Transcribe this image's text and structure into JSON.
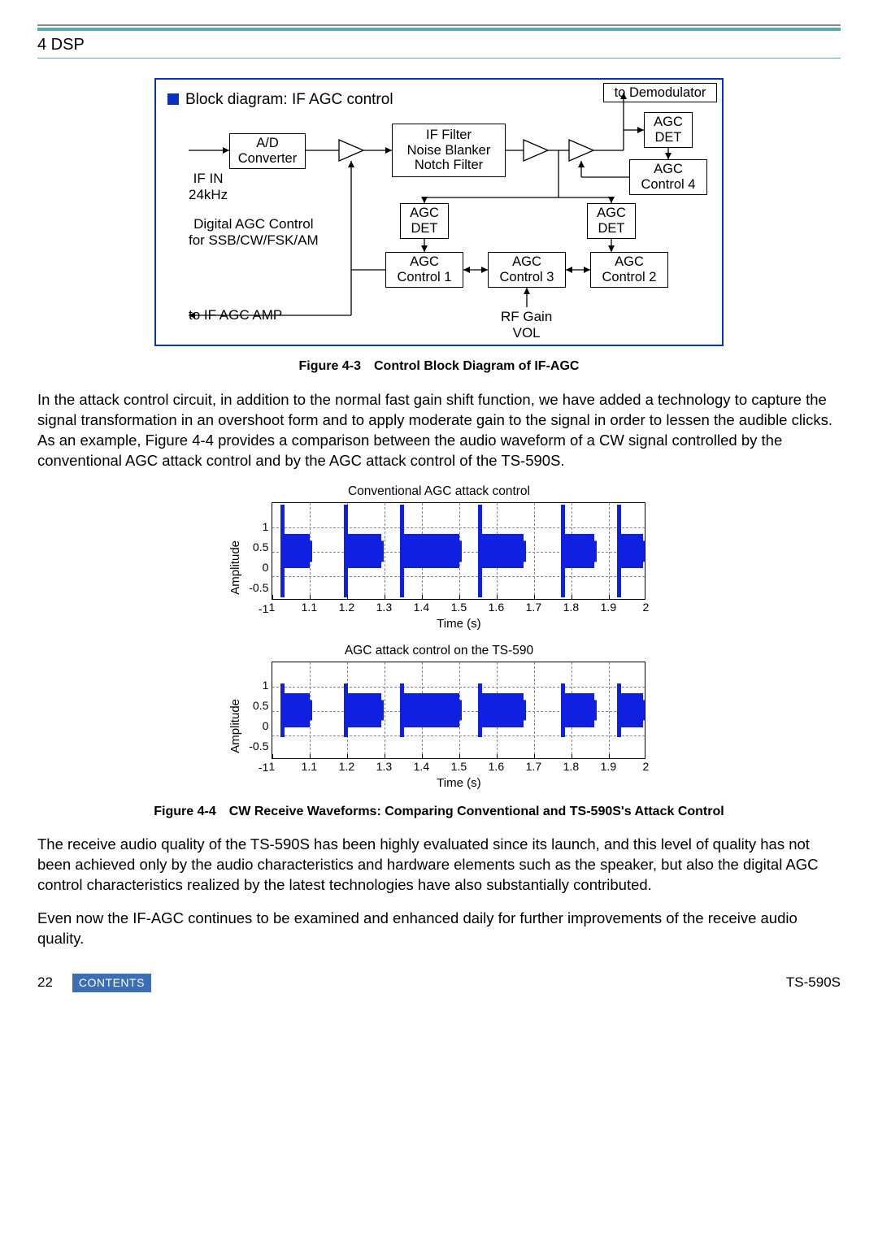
{
  "header": {
    "section": "4 DSP"
  },
  "colors": {
    "accent": "#5aa7b5",
    "diagram_border": "#0b2fbf",
    "contents_bg": "#3b6fb5",
    "burst_color": "#1020e0",
    "grid_color": "#888888"
  },
  "diagram": {
    "title_prefix_square": true,
    "title": "Block diagram: IF AGC control",
    "boxes": {
      "ad_converter": "A/D\nConverter",
      "if_filter": "IF Filter\nNoise Blanker\nNotch Filter",
      "agc_det_top": "AGC\nDET",
      "agc_ctrl4": "AGC\nControl 4",
      "agc_det_mid_l": "AGC\nDET",
      "agc_det_mid_r": "AGC\nDET",
      "agc_ctrl1": "AGC\nControl 1",
      "agc_ctrl3": "AGC\nControl 3",
      "agc_ctrl2": "AGC\nControl 2"
    },
    "labels": {
      "to_demod": "to Demodulator",
      "if_in": "IF IN\n24kHz",
      "digital_agc": "Digital AGC Control\nfor SSB/CW/FSK/AM",
      "to_if_agc_amp": "to IF AGC AMP",
      "rf_gain": "RF Gain\nVOL"
    }
  },
  "captions": {
    "fig43": "Figure 4-3 Control Block Diagram of IF-AGC",
    "fig44": "Figure 4-4 CW Receive Waveforms: Comparing Conventional and TS-590S's Attack Control"
  },
  "paragraphs": {
    "p1": "In the attack control circuit, in addition to the normal fast gain shift function, we have added a technology to capture the signal transformation in an overshoot form and to apply moderate gain to the signal in order to lessen the audible clicks.  As an example, Figure 4-4 provides a comparison between the audio waveform of a CW signal controlled by the conventional AGC attack control and by the AGC attack control of the TS-590S.",
    "p2": "The receive audio quality of the TS-590S has been highly evaluated since its launch, and this level of quality has not been achieved only by the audio characteristics and hardware elements such as the speaker, but also the digital AGC control characteristics realized by the latest technologies have also substantially contributed.",
    "p3": "Even now the IF-AGC continues to be examined and enhanced daily for further improvements of the receive audio quality."
  },
  "charts": {
    "x_axis": {
      "label": "Time (s)",
      "lim": [
        1,
        2
      ],
      "ticks": [
        1,
        1.1,
        1.2,
        1.3,
        1.4,
        1.5,
        1.6,
        1.7,
        1.8,
        1.9,
        2
      ]
    },
    "y_axis": {
      "label": "Amplitude",
      "lim": [
        -1,
        1
      ],
      "ticks": [
        1,
        0.5,
        0,
        -0.5,
        -1
      ]
    },
    "top": {
      "title": "Conventional AGC attack control",
      "bursts": [
        {
          "start_s": 1.02,
          "end_s": 1.1,
          "peak": 0.95,
          "body": 0.35
        },
        {
          "start_s": 1.19,
          "end_s": 1.29,
          "peak": 0.95,
          "body": 0.35
        },
        {
          "start_s": 1.34,
          "end_s": 1.5,
          "peak": 0.95,
          "body": 0.35
        },
        {
          "start_s": 1.55,
          "end_s": 1.67,
          "peak": 0.95,
          "body": 0.35
        },
        {
          "start_s": 1.77,
          "end_s": 1.86,
          "peak": 0.95,
          "body": 0.35
        },
        {
          "start_s": 1.92,
          "end_s": 1.99,
          "peak": 0.95,
          "body": 0.35
        }
      ]
    },
    "bottom": {
      "title": "AGC attack control on the TS-590",
      "bursts": [
        {
          "start_s": 1.02,
          "end_s": 1.1,
          "peak": 0.55,
          "body": 0.35
        },
        {
          "start_s": 1.19,
          "end_s": 1.29,
          "peak": 0.55,
          "body": 0.35
        },
        {
          "start_s": 1.34,
          "end_s": 1.5,
          "peak": 0.55,
          "body": 0.35
        },
        {
          "start_s": 1.55,
          "end_s": 1.67,
          "peak": 0.55,
          "body": 0.35
        },
        {
          "start_s": 1.77,
          "end_s": 1.86,
          "peak": 0.55,
          "body": 0.35
        },
        {
          "start_s": 1.92,
          "end_s": 1.99,
          "peak": 0.55,
          "body": 0.35
        }
      ]
    }
  },
  "footer": {
    "page": "22",
    "contents": "CONTENTS",
    "model": "TS-590S"
  }
}
